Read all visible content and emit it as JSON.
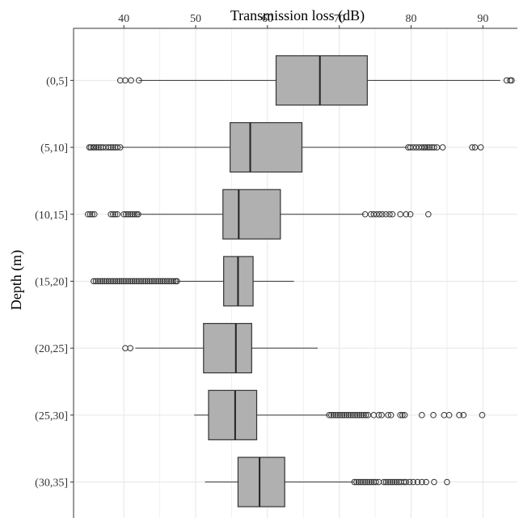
{
  "chart_data": {
    "type": "boxplot",
    "orientation": "horizontal",
    "title": "",
    "xlabel": "Transmission  loss (dB)",
    "ylabel": "Depth (m)",
    "x_axis_position": "top",
    "xlim": [
      33,
      94.8
    ],
    "xticks": [
      40,
      50,
      60,
      70,
      80,
      90
    ],
    "grid": true,
    "categories": [
      "(0,5]",
      "(5,10]",
      "(10,15]",
      "(15,20]",
      "(20,25]",
      "(25,30]",
      "(30,35]"
    ],
    "colors": {
      "box_fill": "#b0b0b0",
      "box_stroke": "#333333",
      "grid": "#e6e6e6",
      "background": "#ffffff"
    },
    "series": [
      {
        "category": "(0,5]",
        "whisker_low": 42.1,
        "q1": 61.2,
        "median": 67.3,
        "q3": 73.9,
        "whisker_high": 92.4,
        "outliers": [
          39.5,
          40.2,
          41.0,
          42.1,
          93.3,
          93.8,
          94.0
        ]
      },
      {
        "category": "(5,10]",
        "whisker_low": 39.5,
        "q1": 54.8,
        "median": 57.6,
        "q3": 64.8,
        "whisker_high": 79.5,
        "outliers": [
          35.2,
          35.4,
          35.7,
          35.9,
          36.2,
          36.5,
          36.8,
          37.1,
          37.5,
          37.9,
          38.2,
          38.5,
          38.8,
          39.1,
          39.5,
          79.6,
          79.9,
          80.3,
          80.7,
          81.1,
          81.5,
          81.8,
          82.0,
          82.3,
          82.6,
          82.9,
          83.2,
          83.6,
          84.4,
          88.5,
          88.9,
          89.7
        ]
      },
      {
        "category": "(10,15]",
        "whisker_low": 42.0,
        "q1": 53.8,
        "median": 56.0,
        "q3": 61.8,
        "whisker_high": 73.5,
        "outliers": [
          35.0,
          35.3,
          35.6,
          35.9,
          38.2,
          38.5,
          38.8,
          39.1,
          40.0,
          40.3,
          40.6,
          40.9,
          41.2,
          41.5,
          41.8,
          42.0,
          73.6,
          74.4,
          74.8,
          75.2,
          75.6,
          76.0,
          76.5,
          77.0,
          77.4,
          78.5,
          79.3,
          79.9,
          82.4
        ]
      },
      {
        "category": "(15,20]",
        "whisker_low": 47.4,
        "q1": 53.9,
        "median": 55.9,
        "q3": 58.0,
        "whisker_high": 63.7,
        "outliers": [
          35.8,
          36.1,
          36.4,
          36.7,
          37.0,
          37.3,
          37.6,
          37.9,
          38.2,
          38.5,
          38.8,
          39.1,
          39.4,
          39.7,
          40.0,
          40.3,
          40.6,
          40.9,
          41.2,
          41.5,
          41.8,
          42.1,
          42.4,
          42.7,
          43.0,
          43.3,
          43.6,
          43.9,
          44.2,
          44.5,
          44.8,
          45.1,
          45.4,
          45.7,
          46.0,
          46.3,
          46.6,
          46.9,
          47.2,
          47.4
        ]
      },
      {
        "category": "(20,25]",
        "whisker_low": 41.6,
        "q1": 51.1,
        "median": 55.6,
        "q3": 57.8,
        "whisker_high": 67.0,
        "outliers": [
          40.2,
          40.9
        ]
      },
      {
        "category": "(25,30]",
        "whisker_low": 49.8,
        "q1": 51.8,
        "median": 55.5,
        "q3": 58.5,
        "whisker_high": 68.5,
        "outliers": [
          68.6,
          68.9,
          69.2,
          69.5,
          69.8,
          70.1,
          70.4,
          70.7,
          71.0,
          71.3,
          71.6,
          71.9,
          72.2,
          72.5,
          72.8,
          73.1,
          73.4,
          73.7,
          74.0,
          74.8,
          75.5,
          75.9,
          76.8,
          77.2,
          78.5,
          78.8,
          79.1,
          81.5,
          83.1,
          84.6,
          85.3,
          86.7,
          87.3,
          89.9
        ]
      },
      {
        "category": "(30,35]",
        "whisker_low": 51.3,
        "q1": 55.9,
        "median": 58.9,
        "q3": 62.4,
        "whisker_high": 72.0,
        "outliers": [
          72.1,
          72.4,
          72.7,
          73.0,
          73.3,
          73.6,
          73.9,
          74.2,
          74.5,
          74.8,
          75.1,
          75.5,
          76.2,
          76.5,
          76.8,
          77.1,
          77.4,
          77.7,
          78.0,
          78.3,
          78.6,
          79.0,
          79.3,
          79.8,
          80.3,
          80.9,
          81.5,
          82.1,
          83.2,
          85.0
        ]
      }
    ]
  }
}
